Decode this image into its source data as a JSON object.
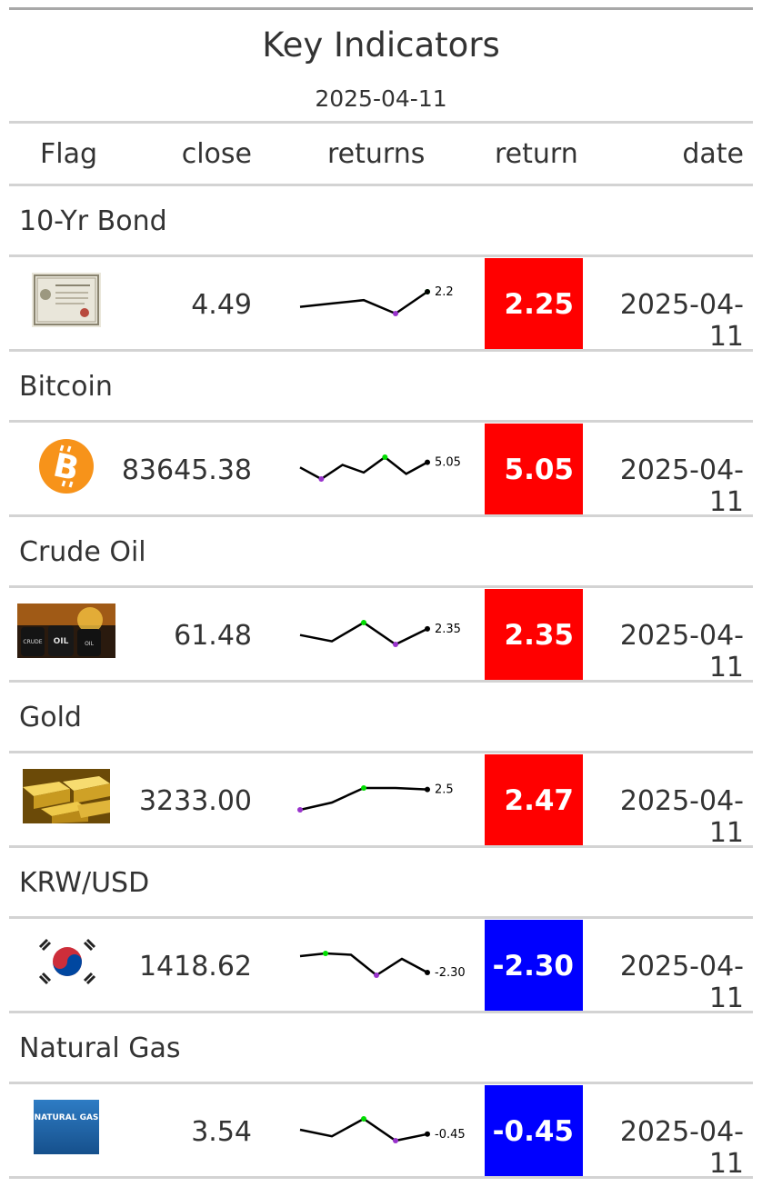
{
  "title": "Key Indicators",
  "subtitle": "2025-04-11",
  "columns": {
    "flag": "Flag",
    "close": "close",
    "returns": "returns",
    "return": "return",
    "date": "date"
  },
  "colors": {
    "positive": "#ff0000",
    "negative": "#0000ff",
    "spark_high": "#00dd00",
    "spark_low": "#9933cc",
    "spark_line": "#000000"
  },
  "rows": [
    {
      "group": "10-Yr Bond",
      "flag_icon": "bond-certificate-icon",
      "close": "4.49",
      "spark_label": "2.2",
      "spark": [
        0.3,
        0.4,
        0.5,
        0.1,
        0.75
      ],
      "return": "2.25",
      "direction": "up",
      "date": "2025-04-11"
    },
    {
      "group": "Bitcoin",
      "flag_icon": "bitcoin-icon",
      "close": "83645.38",
      "spark_label": "5.05",
      "spark": [
        0.2,
        -0.7,
        0.4,
        -0.2,
        1.0,
        -0.3,
        0.6
      ],
      "return": "5.05",
      "direction": "up",
      "date": "2025-04-11"
    },
    {
      "group": "Crude Oil",
      "flag_icon": "oil-barrels-icon",
      "close": "61.48",
      "spark_label": "2.35",
      "spark": [
        0.1,
        -0.1,
        0.5,
        -0.2,
        0.3
      ],
      "return": "2.35",
      "direction": "up",
      "date": "2025-04-11"
    },
    {
      "group": "Gold",
      "flag_icon": "gold-bars-icon",
      "close": "3233.00",
      "spark_label": "2.5",
      "spark": [
        -0.2,
        -0.1,
        0.1,
        0.1,
        0.08
      ],
      "return": "2.47",
      "direction": "up",
      "date": "2025-04-11"
    },
    {
      "group": "KRW/USD",
      "flag_icon": "korea-flag-icon",
      "close": "1418.62",
      "spark_label": "-2.30",
      "spark": [
        0.2,
        0.3,
        0.25,
        -0.5,
        0.1,
        -0.4
      ],
      "return": "-2.30",
      "direction": "down",
      "date": "2025-04-11"
    },
    {
      "group": "Natural Gas",
      "flag_icon": "natural-gas-icon",
      "flag_text": "NATURAL GAS",
      "close": "3.54",
      "spark_label": "-0.45",
      "spark": [
        0.1,
        -0.2,
        0.6,
        -0.4,
        -0.1
      ],
      "return": "-0.45",
      "direction": "down",
      "date": "2025-04-11"
    }
  ]
}
